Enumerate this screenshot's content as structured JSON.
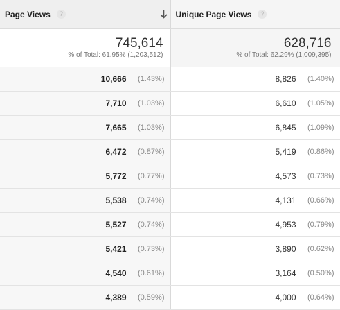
{
  "columns": {
    "page_views": {
      "label": "Page Views",
      "help": "?",
      "sorted": "descending"
    },
    "unique_page_views": {
      "label": "Unique Page Views",
      "help": "?"
    }
  },
  "totals": {
    "page_views": {
      "value": "745,614",
      "pct": "% of Total: 61.95% (1,203,512)"
    },
    "unique_page_views": {
      "value": "628,716",
      "pct": "% of Total: 62.29% (1,009,395)"
    }
  },
  "rows": [
    {
      "pv": "10,666",
      "pv_pct": "(1.43%)",
      "upv": "8,826",
      "upv_pct": "(1.40%)"
    },
    {
      "pv": "7,710",
      "pv_pct": "(1.03%)",
      "upv": "6,610",
      "upv_pct": "(1.05%)"
    },
    {
      "pv": "7,665",
      "pv_pct": "(1.03%)",
      "upv": "6,845",
      "upv_pct": "(1.09%)"
    },
    {
      "pv": "6,472",
      "pv_pct": "(0.87%)",
      "upv": "5,419",
      "upv_pct": "(0.86%)"
    },
    {
      "pv": "5,772",
      "pv_pct": "(0.77%)",
      "upv": "4,573",
      "upv_pct": "(0.73%)"
    },
    {
      "pv": "5,538",
      "pv_pct": "(0.74%)",
      "upv": "4,131",
      "upv_pct": "(0.66%)"
    },
    {
      "pv": "5,527",
      "pv_pct": "(0.74%)",
      "upv": "4,953",
      "upv_pct": "(0.79%)"
    },
    {
      "pv": "5,421",
      "pv_pct": "(0.73%)",
      "upv": "3,890",
      "upv_pct": "(0.62%)"
    },
    {
      "pv": "4,540",
      "pv_pct": "(0.61%)",
      "upv": "3,164",
      "upv_pct": "(0.50%)"
    },
    {
      "pv": "4,389",
      "pv_pct": "(0.59%)",
      "upv": "4,000",
      "upv_pct": "(0.64%)"
    }
  ],
  "icons": {
    "help": "help-circle-icon",
    "sort": "arrow-down-icon"
  },
  "colors": {
    "header_bg": "#efefef",
    "sorted_col_bg": "#f7f7f7",
    "border": "#dcdcdc",
    "pct_text": "#888888"
  }
}
